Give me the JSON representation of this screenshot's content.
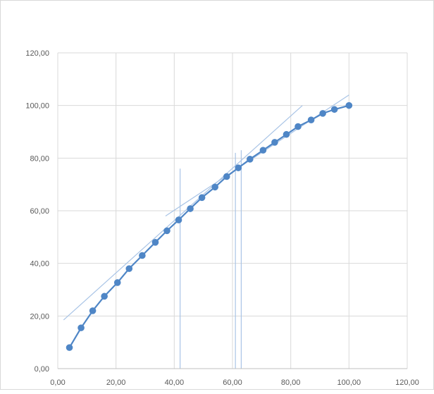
{
  "chart_data": {
    "type": "scatter",
    "title": "",
    "xlabel": "",
    "ylabel": "",
    "xlim": [
      0,
      120
    ],
    "ylim": [
      0,
      120
    ],
    "x_ticks": [
      "0,00",
      "20,00",
      "40,00",
      "60,00",
      "80,00",
      "100,00",
      "120,00"
    ],
    "y_ticks": [
      "0,00",
      "20,00",
      "40,00",
      "60,00",
      "80,00",
      "100,00",
      "120,00"
    ],
    "grid": true,
    "legend": "none",
    "colors": {
      "series": "#4f86c6",
      "gridline": "#d9d9d9",
      "tangent": "#a9c4e6",
      "tick_label": "#595959"
    },
    "series": [
      {
        "x": [
          4,
          8,
          12,
          16,
          20.5,
          24.5,
          29,
          33.5,
          37.5,
          41.5,
          45.5,
          49.5,
          54,
          58,
          62,
          66,
          70.5,
          74.5,
          78.5,
          82.5,
          87,
          91,
          95,
          100
        ],
        "y": [
          8,
          15.5,
          22,
          27.5,
          32.7,
          38,
          43,
          48,
          52.4,
          56.5,
          60.8,
          65,
          69,
          73,
          76.3,
          79.6,
          83,
          86,
          89,
          92,
          94.5,
          97,
          98.5,
          100
        ]
      }
    ],
    "annotations": {
      "tangent_lines": [
        {
          "x": [
            2,
            84
          ],
          "y": [
            18.5,
            100
          ]
        },
        {
          "x": [
            37,
            100
          ],
          "y": [
            58,
            104
          ]
        }
      ],
      "vertical_lines": [
        {
          "x": 42,
          "y": [
            0,
            76
          ]
        },
        {
          "x": 61,
          "y": [
            0,
            82
          ]
        },
        {
          "x": 63,
          "y": [
            0,
            83
          ]
        }
      ]
    }
  }
}
